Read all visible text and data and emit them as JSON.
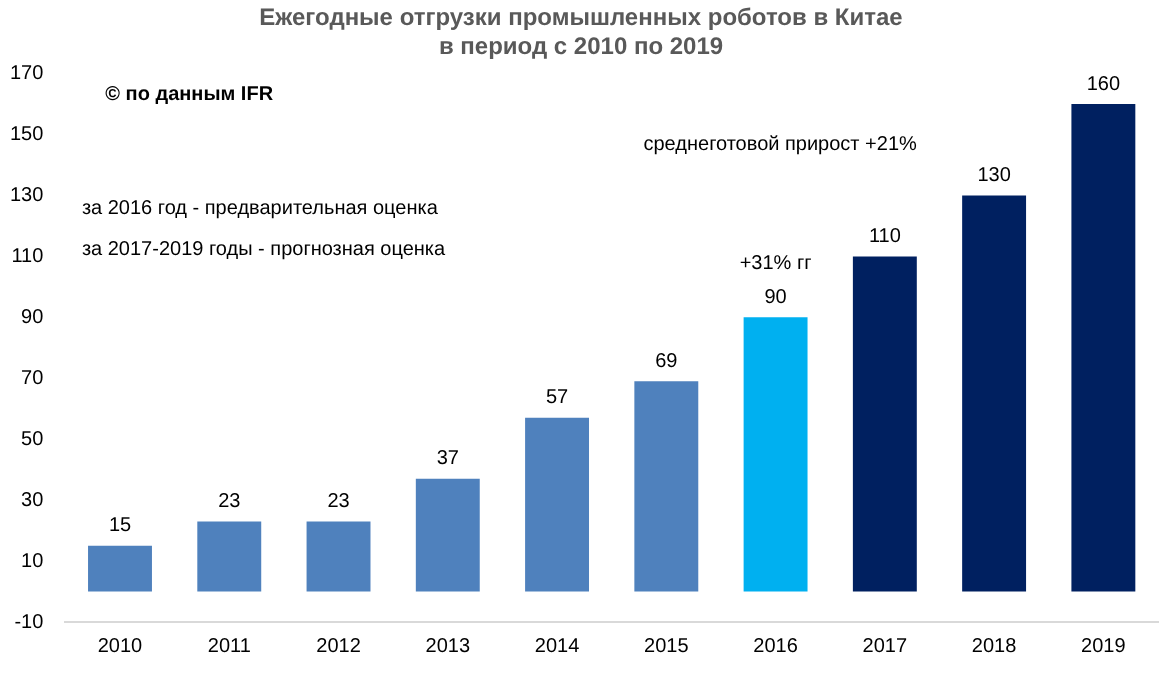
{
  "chart_data": {
    "type": "bar",
    "title": "Ежегодные отгрузки промышленных роботов в Китае\nв период с 2010 по 2019",
    "categories": [
      "2010",
      "2011",
      "2012",
      "2013",
      "2014",
      "2015",
      "2016",
      "2017",
      "2018",
      "2019"
    ],
    "values": [
      15,
      23,
      23,
      37,
      57,
      69,
      90,
      110,
      130,
      160
    ],
    "colors": [
      "#4f81bd",
      "#4f81bd",
      "#4f81bd",
      "#4f81bd",
      "#4f81bd",
      "#4f81bd",
      "#00b0f0",
      "#002060",
      "#002060",
      "#002060"
    ],
    "ylim": [
      -10,
      170
    ],
    "yticks": [
      -10,
      10,
      30,
      50,
      70,
      90,
      110,
      130,
      150,
      170
    ],
    "grid": false,
    "legend": false,
    "data_labels": true,
    "annotations": [
      "© по данным IFR",
      "за 2016 год - предварительная оценка",
      "за 2017-2019 годы - прогнозная оценка",
      "среднеготовой прирост +21%",
      {
        "text": "+31% гг",
        "x": "2016",
        "y": 90
      }
    ]
  }
}
